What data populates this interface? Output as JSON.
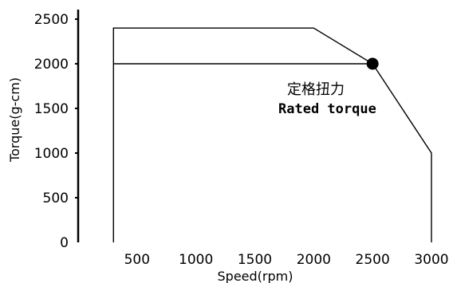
{
  "chart_data": {
    "type": "line",
    "xlabel": "Speed(rpm)",
    "ylabel": "Torque(g-cm)",
    "xlim": [
      0,
      3000
    ],
    "ylim": [
      0,
      2500
    ],
    "x_ticks": [
      500,
      1000,
      1500,
      2000,
      2500,
      3000
    ],
    "y_ticks": [
      0,
      500,
      1000,
      1500,
      2000,
      2500
    ],
    "grid": false,
    "series": [
      {
        "x": [
          300,
          300,
          2000,
          2500,
          3000,
          3000
        ],
        "y": [
          0,
          2400,
          2400,
          2000,
          1000,
          0
        ]
      },
      {
        "x": [
          300,
          2500
        ],
        "y": [
          2000,
          2000
        ]
      }
    ],
    "rated_point": {
      "x": 2500,
      "y": 2000
    },
    "annotation": {
      "line1": "定格扭力",
      "line2": "Rated torque"
    }
  }
}
